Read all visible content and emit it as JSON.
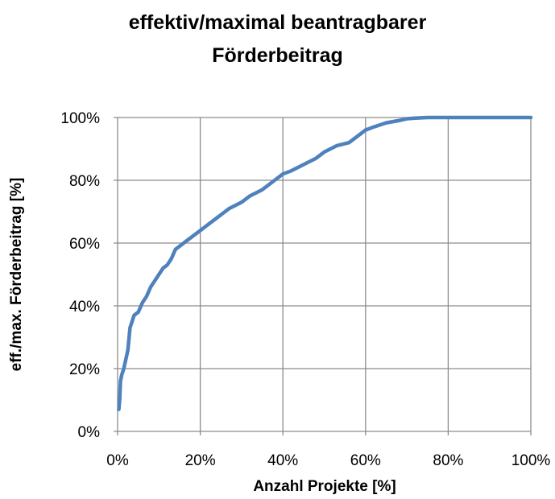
{
  "chart_data": {
    "type": "line",
    "title_lines": [
      "effektiv/maximal beantragbarer",
      "Förderbeitrag"
    ],
    "xlabel": "Anzahl Projekte [%]",
    "ylabel": "eff./max. Förderbeitrag [%]",
    "xlim": [
      0,
      100
    ],
    "ylim": [
      0,
      100
    ],
    "x_ticks": [
      0,
      20,
      40,
      60,
      80,
      100
    ],
    "y_ticks": [
      0,
      20,
      40,
      60,
      80,
      100
    ],
    "x_tick_labels": [
      "0%",
      "20%",
      "40%",
      "60%",
      "80%",
      "100%"
    ],
    "y_tick_labels": [
      "0%",
      "20%",
      "40%",
      "60%",
      "80%",
      "100%"
    ],
    "grid": true,
    "legend": "none",
    "series": [
      {
        "color": "#4f81bd",
        "x": [
          0.3,
          0.5,
          0.7,
          1.0,
          1.5,
          2.0,
          2.5,
          3.0,
          3.5,
          4.0,
          5.0,
          6.0,
          7.0,
          8.0,
          9.0,
          10.0,
          11.0,
          12.0,
          13.0,
          14.0,
          15.0,
          17.0,
          18.0,
          20.0,
          22.0,
          24.0,
          26.0,
          27.0,
          30.0,
          32.0,
          35.0,
          38.0,
          40.0,
          42.0,
          45.0,
          48.0,
          50.0,
          53.0,
          56.0,
          58.0,
          60.0,
          62.0,
          65.0,
          68.0,
          70.0,
          72.0,
          75.0,
          78.0,
          80.0,
          85.0,
          90.0,
          95.0,
          100.0
        ],
        "y": [
          7,
          10,
          16,
          18,
          20,
          23,
          26,
          33,
          35,
          37,
          38,
          41,
          43,
          46,
          48,
          50,
          52,
          53,
          55,
          58,
          59,
          61,
          62,
          64,
          66,
          68,
          70,
          71,
          73,
          75,
          77,
          80,
          82,
          83,
          85,
          87,
          89,
          91,
          92,
          94,
          96,
          97,
          98.3,
          99,
          99.6,
          99.8,
          100,
          100,
          100,
          100,
          100,
          100,
          100
        ]
      }
    ]
  },
  "colors": {
    "series": "#4f81bd",
    "grid": "#8c8c8c",
    "axis": "#8c8c8c",
    "background": "#ffffff"
  }
}
